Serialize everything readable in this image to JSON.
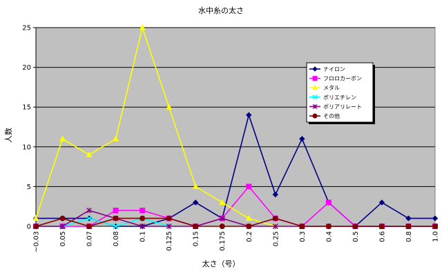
{
  "chart_data": {
    "type": "line",
    "title": "水中糸の太さ",
    "xlabel": "太さ（号）",
    "ylabel": "人数",
    "categories": [
      "~0.03",
      "0.05",
      "0.07",
      "0.08",
      "0.1",
      "0.125",
      "0.15",
      "0.175",
      "0.2",
      "0.25",
      "0.3",
      "0.4",
      "0.5",
      "0.6",
      "0.8",
      "1.0"
    ],
    "ylim": [
      0,
      25
    ],
    "yticks": [
      0,
      5,
      10,
      15,
      20,
      25
    ],
    "grid": true,
    "legend_position": "right",
    "plot_background": "#c0c0c0",
    "series": [
      {
        "name": "ナイロン",
        "color": "#000080",
        "marker": "diamond",
        "values": [
          1,
          1,
          1,
          0,
          0,
          1,
          3,
          1,
          14,
          4,
          11,
          3,
          0,
          3,
          1,
          1
        ]
      },
      {
        "name": "フロロカーボン",
        "color": "#ff00ff",
        "marker": "square",
        "values": [
          0,
          0,
          0,
          2,
          2,
          1,
          0,
          1,
          5,
          1,
          0,
          3,
          0,
          0,
          0,
          0
        ]
      },
      {
        "name": "メタル",
        "color": "#ffff00",
        "marker": "triangle",
        "values": [
          1,
          11,
          9,
          11,
          25,
          15,
          5,
          3,
          1,
          0,
          null,
          null,
          null,
          null,
          null,
          null
        ]
      },
      {
        "name": "ポリエチレン",
        "color": "#00ffff",
        "marker": "x",
        "values": [
          0,
          0,
          1,
          0,
          1,
          0,
          null,
          null,
          null,
          null,
          null,
          null,
          null,
          null,
          null,
          null
        ]
      },
      {
        "name": "ポリアリレート",
        "color": "#800080",
        "marker": "star",
        "values": [
          0,
          0,
          2,
          1,
          0,
          0,
          0,
          1,
          0,
          0,
          0,
          0,
          0,
          0,
          0,
          0
        ]
      },
      {
        "name": "その他",
        "color": "#800000",
        "marker": "circle",
        "values": [
          0,
          1,
          0,
          1,
          1,
          1,
          0,
          0,
          0,
          1,
          0,
          0,
          0,
          0,
          0,
          0
        ]
      }
    ]
  }
}
